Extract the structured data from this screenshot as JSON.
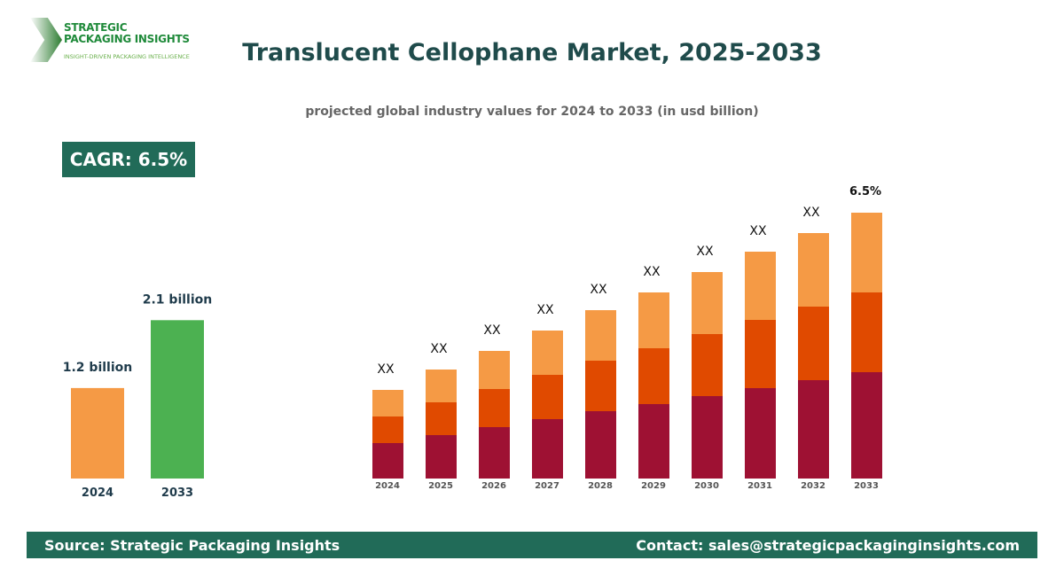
{
  "logo": {
    "line1": "STRATEGIC",
    "line2": "PACKAGING INSIGHTS",
    "tagline": "INSIGHT-DRIVEN PACKAGING INTELLIGENCE"
  },
  "title": "Translucent Cellophane Market, 2025-2033",
  "subtitle": "projected global industry values for 2024 to 2033 (in usd billion)",
  "cagr": "CAGR: 6.5%",
  "chart_data": [
    {
      "type": "bar",
      "categories": [
        "2024",
        "2033"
      ],
      "values": [
        1.2,
        2.1
      ],
      "labels": [
        "1.2 billion",
        "2.1 billion"
      ],
      "colors": [
        "#F59A45",
        "#4CB151"
      ],
      "ylim": [
        0,
        2.8
      ]
    },
    {
      "type": "bar",
      "stacked": true,
      "categories": [
        "2024",
        "2025",
        "2026",
        "2027",
        "2028",
        "2029",
        "2030",
        "2031",
        "2032",
        "2033"
      ],
      "series": [
        {
          "color": "#9E1133",
          "values": [
            40,
            49,
            58,
            67,
            76,
            84,
            93,
            102,
            111,
            120
          ]
        },
        {
          "color": "#E04A00",
          "values": [
            30,
            37,
            43,
            50,
            57,
            63,
            70,
            77,
            83,
            90
          ]
        },
        {
          "color": "#F59A45",
          "values": [
            30,
            37,
            43,
            50,
            57,
            63,
            70,
            77,
            83,
            90
          ]
        }
      ],
      "labels": [
        "XX",
        "XX",
        "XX",
        "XX",
        "XX",
        "XX",
        "XX",
        "XX",
        "XX",
        "6.5%"
      ],
      "ylim": [
        0,
        300
      ]
    }
  ],
  "footer": {
    "source": "Source: Strategic Packaging Insights",
    "contact": "Contact: sales@strategicpackaginginsights.com"
  }
}
